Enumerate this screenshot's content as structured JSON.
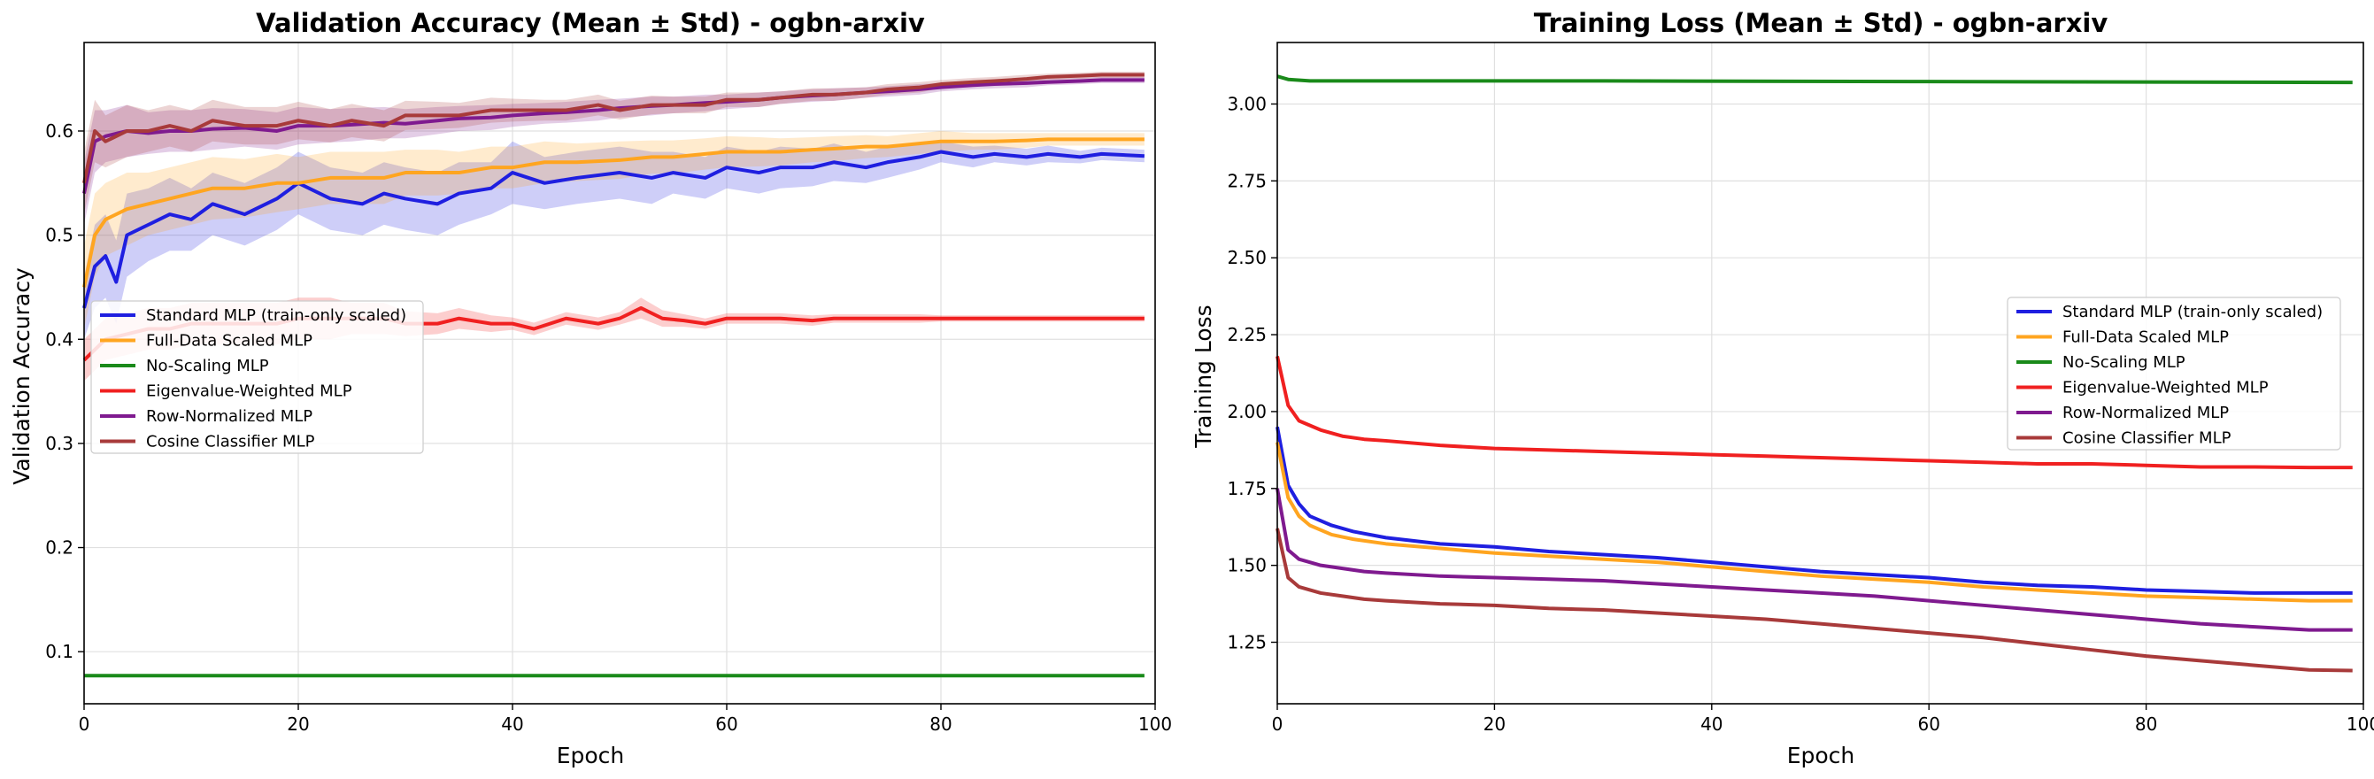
{
  "chart_data": [
    {
      "type": "line",
      "title": "Validation Accuracy (Mean ± Std) - ogbn-arxiv",
      "xlabel": "Epoch",
      "ylabel": "Validation Accuracy",
      "xlim": [
        0,
        100
      ],
      "ylim": [
        0.05,
        0.685
      ],
      "xticks": [
        0,
        20,
        40,
        60,
        80,
        100
      ],
      "yticks": [
        0.1,
        0.2,
        0.3,
        0.4,
        0.5,
        0.6
      ],
      "grid": true,
      "legend_position": "center-left",
      "shaded_std_band": true,
      "series": [
        {
          "name": "Standard MLP (train-only scaled)",
          "color": "#1f1fe0",
          "x": [
            0,
            1,
            2,
            3,
            4,
            6,
            8,
            10,
            12,
            15,
            18,
            20,
            23,
            26,
            28,
            30,
            33,
            35,
            38,
            40,
            43,
            46,
            50,
            53,
            55,
            58,
            60,
            63,
            65,
            68,
            70,
            73,
            75,
            78,
            80,
            83,
            85,
            88,
            90,
            93,
            95,
            99
          ],
          "y": [
            0.43,
            0.47,
            0.48,
            0.455,
            0.5,
            0.51,
            0.52,
            0.515,
            0.53,
            0.52,
            0.535,
            0.55,
            0.535,
            0.53,
            0.54,
            0.535,
            0.53,
            0.54,
            0.545,
            0.56,
            0.55,
            0.555,
            0.56,
            0.555,
            0.56,
            0.555,
            0.565,
            0.56,
            0.565,
            0.565,
            0.57,
            0.565,
            0.57,
            0.575,
            0.58,
            0.575,
            0.578,
            0.575,
            0.578,
            0.575,
            0.578,
            0.576
          ],
          "std": [
            0.03,
            0.04,
            0.04,
            0.04,
            0.04,
            0.035,
            0.035,
            0.03,
            0.03,
            0.03,
            0.03,
            0.03,
            0.03,
            0.03,
            0.03,
            0.03,
            0.03,
            0.03,
            0.025,
            0.03,
            0.025,
            0.025,
            0.025,
            0.025,
            0.02,
            0.02,
            0.02,
            0.02,
            0.02,
            0.018,
            0.018,
            0.015,
            0.015,
            0.012,
            0.01,
            0.01,
            0.008,
            0.008,
            0.008,
            0.006,
            0.006,
            0.006
          ]
        },
        {
          "name": "Full-Data Scaled MLP",
          "color": "#ffa520",
          "x": [
            0,
            1,
            2,
            4,
            6,
            8,
            10,
            12,
            15,
            18,
            20,
            23,
            26,
            28,
            30,
            33,
            35,
            38,
            40,
            43,
            46,
            50,
            53,
            55,
            58,
            60,
            63,
            65,
            68,
            70,
            73,
            75,
            78,
            80,
            83,
            85,
            88,
            90,
            93,
            95,
            99
          ],
          "y": [
            0.45,
            0.5,
            0.515,
            0.525,
            0.53,
            0.535,
            0.54,
            0.545,
            0.545,
            0.55,
            0.55,
            0.555,
            0.555,
            0.555,
            0.56,
            0.56,
            0.56,
            0.565,
            0.565,
            0.57,
            0.57,
            0.572,
            0.575,
            0.575,
            0.578,
            0.58,
            0.58,
            0.58,
            0.582,
            0.583,
            0.585,
            0.585,
            0.588,
            0.59,
            0.59,
            0.59,
            0.591,
            0.592,
            0.592,
            0.592,
            0.592
          ],
          "std": [
            0.04,
            0.04,
            0.035,
            0.035,
            0.03,
            0.03,
            0.03,
            0.03,
            0.028,
            0.028,
            0.025,
            0.025,
            0.025,
            0.025,
            0.022,
            0.022,
            0.02,
            0.02,
            0.02,
            0.02,
            0.018,
            0.018,
            0.016,
            0.016,
            0.015,
            0.015,
            0.014,
            0.013,
            0.012,
            0.012,
            0.011,
            0.01,
            0.01,
            0.01,
            0.008,
            0.008,
            0.007,
            0.006,
            0.006,
            0.006,
            0.006
          ]
        },
        {
          "name": "No-Scaling MLP",
          "color": "#1a8a1a",
          "x": [
            0,
            99
          ],
          "y": [
            0.077,
            0.077
          ],
          "std": [
            0,
            0
          ]
        },
        {
          "name": "Eigenvalue-Weighted MLP",
          "color": "#f02020",
          "x": [
            0,
            1,
            2,
            4,
            6,
            8,
            10,
            12,
            15,
            18,
            20,
            23,
            25,
            28,
            30,
            33,
            35,
            38,
            40,
            42,
            45,
            48,
            50,
            52,
            54,
            56,
            58,
            60,
            63,
            65,
            68,
            70,
            73,
            75,
            78,
            80,
            83,
            85,
            88,
            90,
            93,
            95,
            99
          ],
          "y": [
            0.38,
            0.39,
            0.4,
            0.405,
            0.41,
            0.41,
            0.415,
            0.415,
            0.415,
            0.415,
            0.42,
            0.42,
            0.42,
            0.42,
            0.415,
            0.415,
            0.42,
            0.415,
            0.415,
            0.41,
            0.42,
            0.415,
            0.42,
            0.43,
            0.42,
            0.418,
            0.415,
            0.42,
            0.42,
            0.42,
            0.418,
            0.42,
            0.42,
            0.42,
            0.42,
            0.42,
            0.42,
            0.42,
            0.42,
            0.42,
            0.42,
            0.42,
            0.42
          ],
          "std": [
            0.02,
            0.02,
            0.02,
            0.02,
            0.02,
            0.02,
            0.02,
            0.02,
            0.02,
            0.02,
            0.02,
            0.02,
            0.015,
            0.015,
            0.012,
            0.01,
            0.01,
            0.008,
            0.006,
            0.006,
            0.006,
            0.006,
            0.006,
            0.01,
            0.008,
            0.006,
            0.005,
            0.005,
            0.005,
            0.005,
            0.005,
            0.004,
            0.004,
            0.004,
            0.004,
            0.003,
            0.003,
            0.003,
            0.003,
            0.003,
            0.003,
            0.003,
            0.003
          ]
        },
        {
          "name": "Row-Normalized MLP",
          "color": "#7f1a8f",
          "x": [
            0,
            1,
            2,
            4,
            6,
            8,
            10,
            12,
            15,
            18,
            20,
            23,
            25,
            28,
            30,
            33,
            35,
            38,
            40,
            43,
            45,
            48,
            50,
            53,
            55,
            58,
            60,
            63,
            65,
            68,
            70,
            73,
            75,
            78,
            80,
            83,
            85,
            88,
            90,
            93,
            95,
            99
          ],
          "y": [
            0.54,
            0.59,
            0.595,
            0.6,
            0.598,
            0.6,
            0.6,
            0.602,
            0.603,
            0.6,
            0.605,
            0.605,
            0.606,
            0.608,
            0.607,
            0.61,
            0.612,
            0.613,
            0.615,
            0.617,
            0.618,
            0.62,
            0.622,
            0.624,
            0.625,
            0.627,
            0.628,
            0.63,
            0.632,
            0.634,
            0.635,
            0.637,
            0.638,
            0.64,
            0.642,
            0.644,
            0.645,
            0.646,
            0.647,
            0.648,
            0.649,
            0.649
          ],
          "std": [
            0.03,
            0.03,
            0.025,
            0.025,
            0.02,
            0.02,
            0.02,
            0.02,
            0.018,
            0.018,
            0.018,
            0.016,
            0.016,
            0.015,
            0.014,
            0.013,
            0.012,
            0.012,
            0.011,
            0.01,
            0.01,
            0.01,
            0.009,
            0.009,
            0.008,
            0.008,
            0.007,
            0.007,
            0.006,
            0.006,
            0.006,
            0.005,
            0.005,
            0.005,
            0.004,
            0.004,
            0.004,
            0.004,
            0.003,
            0.003,
            0.003,
            0.003
          ]
        },
        {
          "name": "Cosine Classifier MLP",
          "color": "#a83a3a",
          "x": [
            0,
            1,
            2,
            4,
            6,
            8,
            10,
            12,
            15,
            18,
            20,
            23,
            25,
            28,
            30,
            33,
            35,
            38,
            40,
            43,
            45,
            48,
            50,
            53,
            55,
            58,
            60,
            63,
            65,
            68,
            70,
            73,
            75,
            78,
            80,
            83,
            85,
            88,
            90,
            93,
            95,
            99
          ],
          "y": [
            0.55,
            0.6,
            0.59,
            0.6,
            0.6,
            0.605,
            0.6,
            0.61,
            0.605,
            0.605,
            0.61,
            0.605,
            0.61,
            0.605,
            0.615,
            0.615,
            0.615,
            0.62,
            0.62,
            0.62,
            0.62,
            0.625,
            0.62,
            0.625,
            0.625,
            0.625,
            0.63,
            0.63,
            0.632,
            0.635,
            0.635,
            0.637,
            0.64,
            0.642,
            0.645,
            0.647,
            0.648,
            0.65,
            0.652,
            0.653,
            0.654,
            0.654
          ],
          "std": [
            0.03,
            0.03,
            0.025,
            0.025,
            0.02,
            0.02,
            0.02,
            0.02,
            0.018,
            0.018,
            0.018,
            0.016,
            0.016,
            0.015,
            0.014,
            0.013,
            0.012,
            0.012,
            0.011,
            0.01,
            0.01,
            0.01,
            0.009,
            0.009,
            0.008,
            0.008,
            0.007,
            0.007,
            0.006,
            0.006,
            0.006,
            0.005,
            0.005,
            0.005,
            0.004,
            0.004,
            0.004,
            0.004,
            0.003,
            0.003,
            0.003,
            0.003
          ]
        }
      ]
    },
    {
      "type": "line",
      "title": "Training Loss (Mean ± Std) - ogbn-arxiv",
      "xlabel": "Epoch",
      "ylabel": "Training Loss",
      "xlim": [
        0,
        100
      ],
      "ylim": [
        1.05,
        3.2
      ],
      "xticks": [
        0,
        20,
        40,
        60,
        80,
        100
      ],
      "yticks": [
        1.25,
        1.5,
        1.75,
        2.0,
        2.25,
        2.5,
        2.75,
        3.0
      ],
      "grid": true,
      "legend_position": "center-right",
      "series": [
        {
          "name": "Standard MLP (train-only scaled)",
          "color": "#1f1fe0",
          "x": [
            0,
            1,
            2,
            3,
            5,
            7,
            10,
            15,
            20,
            25,
            30,
            35,
            40,
            45,
            50,
            55,
            60,
            65,
            70,
            75,
            80,
            85,
            90,
            95,
            99
          ],
          "y": [
            1.95,
            1.76,
            1.7,
            1.66,
            1.63,
            1.61,
            1.59,
            1.57,
            1.56,
            1.545,
            1.535,
            1.525,
            1.51,
            1.495,
            1.48,
            1.47,
            1.46,
            1.445,
            1.435,
            1.43,
            1.42,
            1.415,
            1.41,
            1.41,
            1.41
          ]
        },
        {
          "name": "Full-Data Scaled MLP",
          "color": "#ffa520",
          "x": [
            0,
            1,
            2,
            3,
            5,
            7,
            10,
            15,
            20,
            25,
            30,
            35,
            40,
            45,
            50,
            55,
            60,
            65,
            70,
            75,
            80,
            85,
            90,
            95,
            99
          ],
          "y": [
            1.9,
            1.72,
            1.66,
            1.63,
            1.6,
            1.585,
            1.57,
            1.555,
            1.54,
            1.53,
            1.52,
            1.51,
            1.495,
            1.48,
            1.465,
            1.455,
            1.445,
            1.43,
            1.42,
            1.41,
            1.4,
            1.395,
            1.39,
            1.385,
            1.385
          ]
        },
        {
          "name": "No-Scaling MLP",
          "color": "#1a8a1a",
          "x": [
            0,
            1,
            3,
            10,
            30,
            60,
            99
          ],
          "y": [
            3.09,
            3.08,
            3.075,
            3.075,
            3.075,
            3.073,
            3.07
          ]
        },
        {
          "name": "Eigenvalue-Weighted MLP",
          "color": "#f02020",
          "x": [
            0,
            1,
            2,
            4,
            6,
            8,
            10,
            15,
            20,
            25,
            30,
            35,
            40,
            45,
            50,
            55,
            60,
            65,
            70,
            75,
            80,
            85,
            90,
            95,
            99
          ],
          "y": [
            2.18,
            2.02,
            1.97,
            1.94,
            1.92,
            1.91,
            1.905,
            1.89,
            1.88,
            1.875,
            1.87,
            1.865,
            1.86,
            1.855,
            1.85,
            1.845,
            1.84,
            1.835,
            1.83,
            1.83,
            1.825,
            1.82,
            1.82,
            1.818,
            1.818
          ]
        },
        {
          "name": "Row-Normalized MLP",
          "color": "#7f1a8f",
          "x": [
            0,
            1,
            2,
            4,
            6,
            8,
            10,
            15,
            20,
            25,
            30,
            35,
            40,
            45,
            50,
            55,
            60,
            65,
            70,
            75,
            80,
            85,
            90,
            95,
            99
          ],
          "y": [
            1.75,
            1.55,
            1.52,
            1.5,
            1.49,
            1.48,
            1.475,
            1.465,
            1.46,
            1.455,
            1.45,
            1.44,
            1.43,
            1.42,
            1.41,
            1.4,
            1.385,
            1.37,
            1.355,
            1.34,
            1.325,
            1.31,
            1.3,
            1.29,
            1.29
          ]
        },
        {
          "name": "Cosine Classifier MLP",
          "color": "#a83a3a",
          "x": [
            0,
            1,
            2,
            4,
            6,
            8,
            10,
            15,
            20,
            25,
            30,
            35,
            40,
            45,
            50,
            55,
            60,
            65,
            70,
            75,
            80,
            85,
            90,
            95,
            99
          ],
          "y": [
            1.62,
            1.46,
            1.43,
            1.41,
            1.4,
            1.39,
            1.385,
            1.375,
            1.37,
            1.36,
            1.355,
            1.345,
            1.335,
            1.325,
            1.31,
            1.295,
            1.28,
            1.265,
            1.245,
            1.225,
            1.205,
            1.19,
            1.175,
            1.16,
            1.158
          ]
        }
      ]
    }
  ]
}
